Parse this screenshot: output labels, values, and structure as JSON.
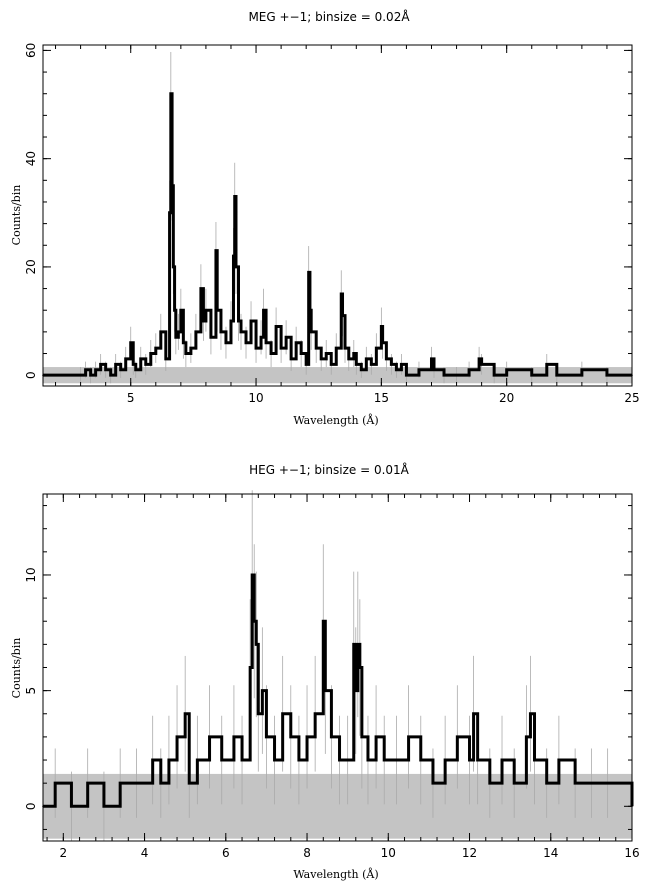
{
  "chart_data": [
    {
      "type": "line",
      "title": "MEG +−1; binsize = 0.02Å",
      "xlabel": "Wavelength (Å)",
      "ylabel": "Counts/bin",
      "xlim": [
        1.5,
        25
      ],
      "ylim": [
        -2,
        61
      ],
      "xticks": [
        5,
        10,
        15,
        20,
        25
      ],
      "yticks": [
        0,
        20,
        40,
        60
      ],
      "grid": false,
      "error_band": [
        -1.5,
        1.5
      ],
      "series": [
        {
          "x": [
            1.5,
            3.0,
            3.2,
            3.4,
            3.6,
            3.8,
            4.0,
            4.2,
            4.4,
            4.6,
            4.8,
            5.0,
            5.1,
            5.2,
            5.4,
            5.6,
            5.8,
            6.0,
            6.2,
            6.4,
            6.55,
            6.6,
            6.65,
            6.7,
            6.75,
            6.8,
            6.9,
            7.0,
            7.1,
            7.2,
            7.4,
            7.6,
            7.8,
            7.9,
            8.0,
            8.2,
            8.4,
            8.45,
            8.6,
            8.8,
            9.0,
            9.1,
            9.15,
            9.2,
            9.3,
            9.4,
            9.6,
            9.8,
            10.0,
            10.2,
            10.3,
            10.4,
            10.6,
            10.8,
            11.0,
            11.2,
            11.4,
            11.6,
            11.8,
            12.0,
            12.1,
            12.15,
            12.2,
            12.4,
            12.6,
            12.8,
            13.0,
            13.2,
            13.4,
            13.45,
            13.55,
            13.7,
            13.9,
            14.0,
            14.2,
            14.4,
            14.6,
            14.8,
            15.0,
            15.05,
            15.2,
            15.4,
            15.6,
            15.8,
            16.0,
            16.5,
            17.0,
            17.1,
            17.5,
            18.0,
            18.5,
            18.9,
            19.0,
            19.5,
            20.0,
            21.0,
            21.6,
            22.0,
            23.0,
            24.0,
            25.0
          ],
          "y": [
            0,
            0,
            1,
            0,
            1,
            2,
            1,
            0,
            2,
            1,
            3,
            6,
            2,
            1,
            3,
            2,
            4,
            5,
            8,
            3,
            30,
            52,
            35,
            20,
            12,
            7,
            8,
            12,
            6,
            4,
            5,
            8,
            16,
            10,
            12,
            7,
            23,
            12,
            8,
            6,
            10,
            22,
            33,
            20,
            10,
            8,
            6,
            10,
            5,
            7,
            12,
            6,
            4,
            9,
            5,
            7,
            3,
            6,
            4,
            2,
            19,
            12,
            8,
            5,
            3,
            4,
            2,
            5,
            15,
            11,
            5,
            3,
            4,
            2,
            1,
            3,
            2,
            5,
            9,
            6,
            3,
            2,
            1,
            2,
            0,
            1,
            3,
            1,
            0,
            0,
            1,
            3,
            2,
            0,
            1,
            0,
            2,
            0,
            1,
            0,
            0
          ]
        }
      ]
    },
    {
      "type": "line",
      "title": "HEG +−1; binsize = 0.01Å",
      "xlabel": "Wavelength (Å)",
      "ylabel": "Counts/bin",
      "xlim": [
        1.5,
        16
      ],
      "ylim": [
        -1.5,
        13.5
      ],
      "xticks": [
        2,
        4,
        6,
        8,
        10,
        12,
        14,
        16
      ],
      "yticks": [
        0,
        5,
        10
      ],
      "grid": false,
      "error_band": [
        -1.4,
        1.4
      ],
      "series": [
        {
          "x": [
            1.5,
            1.8,
            2.2,
            2.6,
            3.0,
            3.4,
            3.8,
            4.2,
            4.4,
            4.6,
            4.8,
            5.0,
            5.1,
            5.3,
            5.6,
            5.9,
            6.2,
            6.4,
            6.6,
            6.65,
            6.7,
            6.75,
            6.8,
            6.9,
            7.0,
            7.2,
            7.4,
            7.6,
            7.8,
            8.0,
            8.2,
            8.4,
            8.45,
            8.6,
            8.8,
            9.0,
            9.15,
            9.2,
            9.25,
            9.3,
            9.35,
            9.5,
            9.7,
            9.9,
            10.2,
            10.5,
            10.8,
            11.1,
            11.4,
            11.7,
            12.0,
            12.1,
            12.2,
            12.5,
            12.8,
            13.1,
            13.4,
            13.5,
            13.6,
            13.9,
            14.2,
            14.6,
            15.0,
            15.4,
            16.0
          ],
          "y": [
            0,
            1,
            0,
            1,
            0,
            1,
            1,
            2,
            1,
            2,
            3,
            4,
            1,
            2,
            3,
            2,
            3,
            2,
            6,
            10,
            8,
            7,
            4,
            5,
            3,
            2,
            4,
            3,
            2,
            3,
            4,
            8,
            5,
            3,
            2,
            2,
            7,
            5,
            7,
            6,
            3,
            2,
            3,
            2,
            2,
            3,
            2,
            1,
            2,
            3,
            2,
            4,
            2,
            1,
            2,
            1,
            3,
            4,
            2,
            1,
            2,
            1,
            1,
            1,
            0
          ]
        }
      ]
    }
  ]
}
